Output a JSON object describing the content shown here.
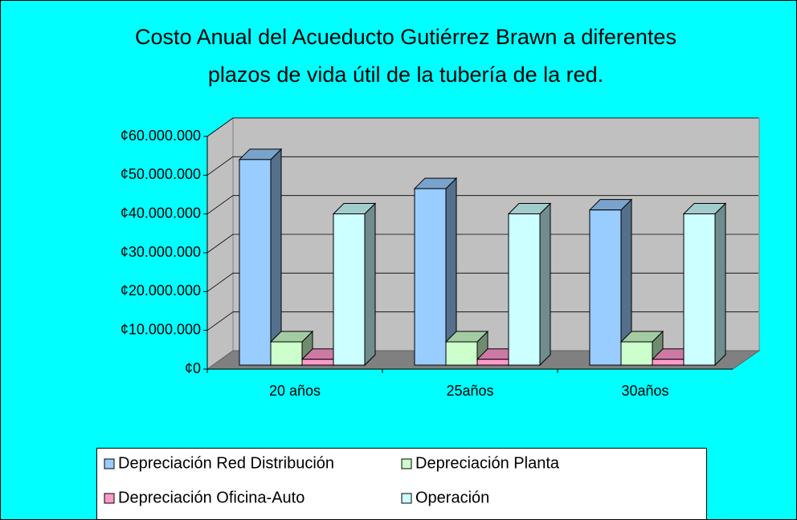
{
  "chart_data": {
    "type": "bar3d",
    "title": [
      "Costo Anual del Acueducto Gutiérrez Brawn a diferentes",
      "plazos de vida útil de la tubería de la red."
    ],
    "categories": [
      "20 años",
      "25años",
      "30años"
    ],
    "series": [
      {
        "name": "Depreciación Red Distribución",
        "color": "#99ccff",
        "values": [
          53000000,
          45500000,
          40000000
        ]
      },
      {
        "name": "Depreciación Planta",
        "color": "#ccffcc",
        "values": [
          6000000,
          6000000,
          6000000
        ]
      },
      {
        "name": "Depreciación Oficina-Auto",
        "color": "#ff99cc",
        "values": [
          1500000,
          1500000,
          1500000
        ]
      },
      {
        "name": "Operación",
        "color": "#ccffff",
        "values": [
          39000000,
          39000000,
          39000000
        ]
      }
    ],
    "ylim": [
      0,
      60000000
    ],
    "yticks": [
      {
        "value": 0,
        "label": "¢0"
      },
      {
        "value": 10000000,
        "label": "¢10.000.000"
      },
      {
        "value": 20000000,
        "label": "¢20.000.000"
      },
      {
        "value": 30000000,
        "label": "¢30.000.000"
      },
      {
        "value": 40000000,
        "label": "¢40.000.000"
      },
      {
        "value": 50000000,
        "label": "¢50.000.000"
      },
      {
        "value": 60000000,
        "label": "¢60.000.000"
      }
    ],
    "grid": true
  }
}
